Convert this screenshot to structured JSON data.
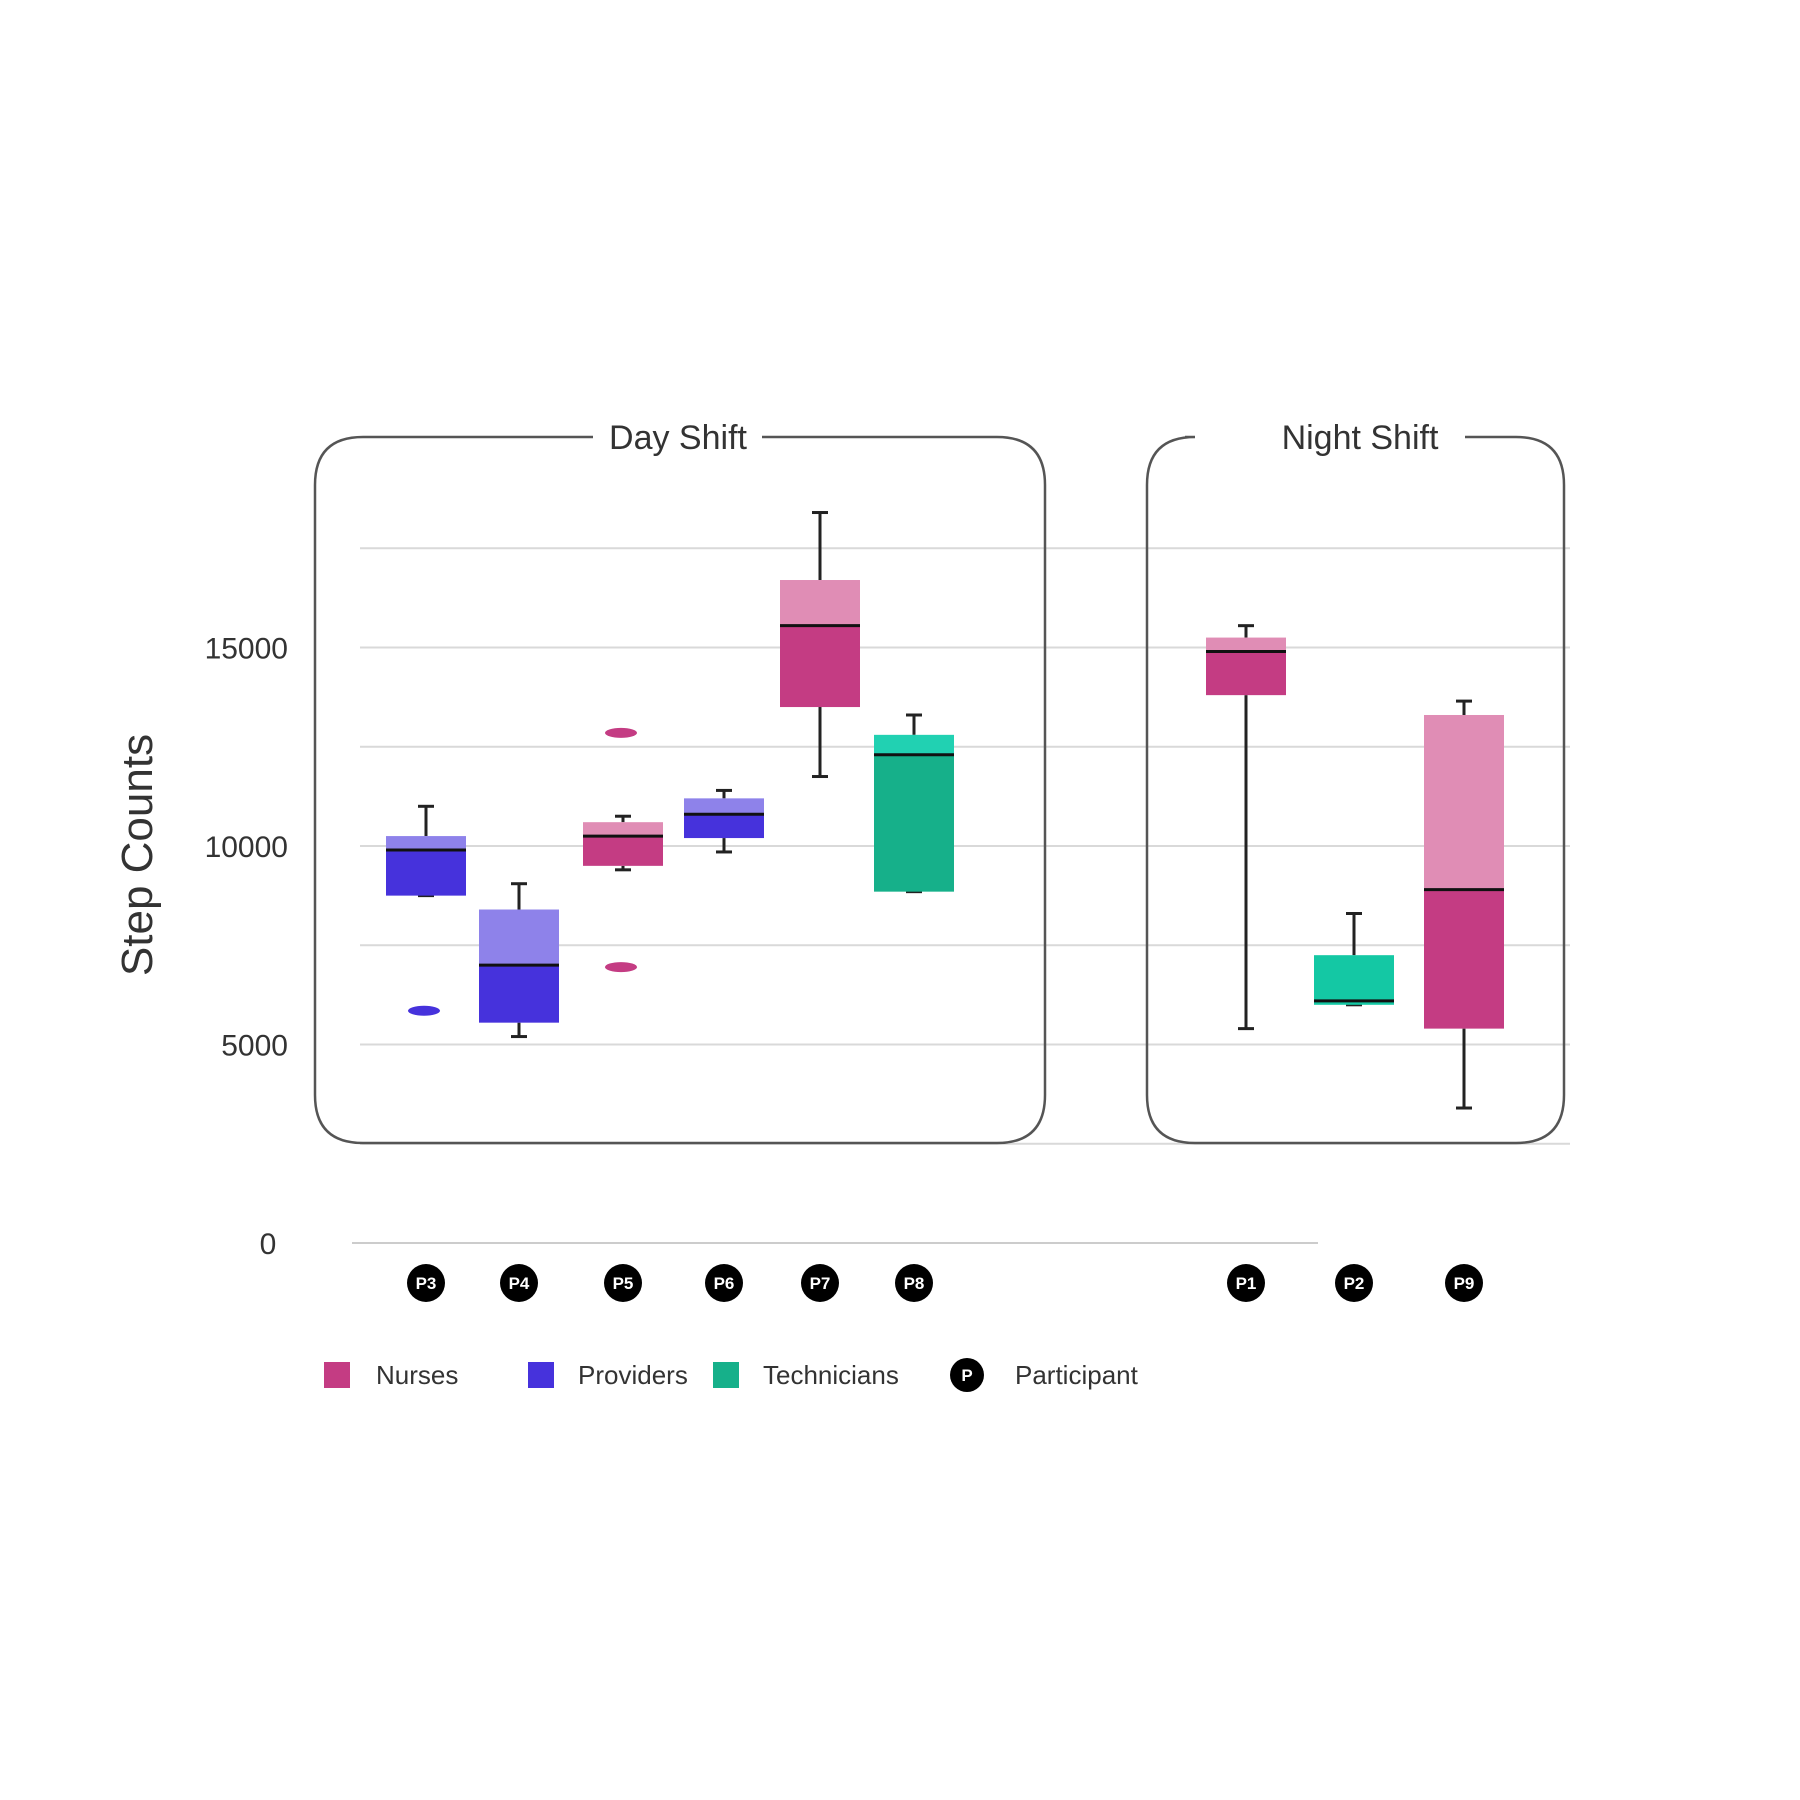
{
  "chart_data": {
    "type": "box",
    "ylabel": "Step Counts",
    "ylim": [
      0,
      20000
    ],
    "yticks": [
      0,
      5000,
      10000,
      15000
    ],
    "grid": true,
    "panels": [
      {
        "title": "Day Shift",
        "participants": [
          {
            "label": "P3",
            "group": "Providers",
            "whisker_low": 8750,
            "q1": 8750,
            "median": 9900,
            "q3": 10250,
            "whisker_high": 11000,
            "outliers": [
              5850
            ]
          },
          {
            "label": "P4",
            "group": "Providers",
            "whisker_low": 5200,
            "q1": 5550,
            "median": 7000,
            "q3": 8400,
            "whisker_high": 9050,
            "outliers": []
          },
          {
            "label": "P5",
            "group": "Nurses",
            "whisker_low": 9400,
            "q1": 9500,
            "median": 10250,
            "q3": 10600,
            "whisker_high": 10750,
            "outliers": [
              12850,
              6950
            ]
          },
          {
            "label": "P6",
            "group": "Providers",
            "whisker_low": 9850,
            "q1": 10200,
            "median": 10800,
            "q3": 11200,
            "whisker_high": 11400,
            "outliers": []
          },
          {
            "label": "P7",
            "group": "Nurses",
            "whisker_low": 11750,
            "q1": 13500,
            "median": 15550,
            "q3": 16700,
            "whisker_high": 18400,
            "outliers": []
          },
          {
            "label": "P8",
            "group": "Technicians",
            "whisker_low": 8850,
            "q1": 8850,
            "median": 12300,
            "q3": 12800,
            "whisker_high": 13300,
            "outliers": []
          }
        ]
      },
      {
        "title": "Night Shift",
        "participants": [
          {
            "label": "P1",
            "group": "Nurses",
            "whisker_low": 5400,
            "q1": 13800,
            "median": 14900,
            "q3": 15250,
            "whisker_high": 15550,
            "outliers": []
          },
          {
            "label": "P2",
            "group": "Technicians",
            "whisker_low": 6000,
            "q1": 6000,
            "median": 6100,
            "q3": 7250,
            "whisker_high": 8300,
            "outliers": []
          },
          {
            "label": "P9",
            "group": "Nurses",
            "whisker_low": 3400,
            "q1": 5400,
            "median": 8900,
            "q3": 13300,
            "whisker_high": 13650,
            "outliers": []
          }
        ]
      }
    ],
    "legend": [
      {
        "label": "Nurses",
        "type": "square",
        "color": "#c43c83"
      },
      {
        "label": "Providers",
        "type": "square",
        "color": "#4632dc"
      },
      {
        "label": "Technicians",
        "type": "square",
        "color": "#16b08a"
      },
      {
        "label": "Participant",
        "type": "badge",
        "badge_text": "P",
        "color": "#000000"
      }
    ],
    "colors": {
      "Nurses": {
        "dark": "#c43c83",
        "light": "#e08db5"
      },
      "Providers": {
        "dark": "#4632dc",
        "light": "#8e82ea"
      },
      "Technicians": {
        "dark": "#16b08a",
        "light": "#21d1b2"
      },
      "Technicians_night": {
        "dark": "#14c8a4",
        "light": "#14c8a4"
      }
    }
  }
}
